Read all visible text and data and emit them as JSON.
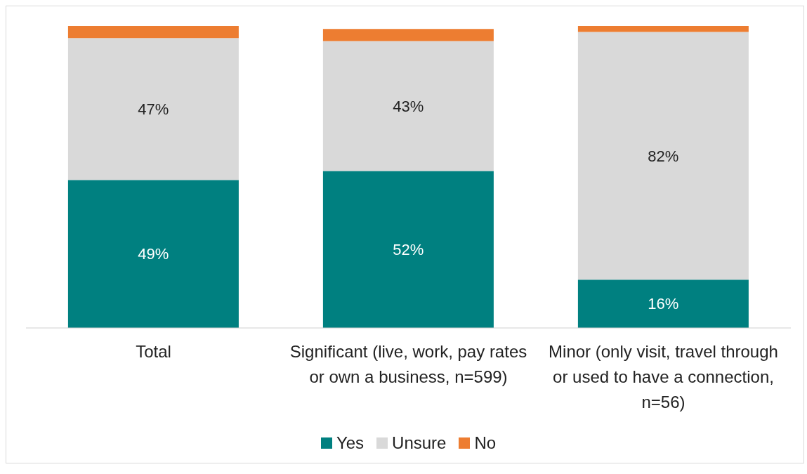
{
  "chart_data": {
    "type": "bar",
    "stacked": true,
    "categories": [
      "Total",
      "Significant (live, work, pay rates or own a business, n=599)",
      "Minor (only visit, travel through or used to have a connection, n=56)"
    ],
    "series": [
      {
        "name": "Yes",
        "color": "#008080",
        "values": [
          49,
          52,
          16
        ],
        "value_labels": [
          "49%",
          "52%",
          "16%"
        ]
      },
      {
        "name": "Unsure",
        "color": "#d9d9d9",
        "values": [
          47,
          43,
          82
        ],
        "value_labels": [
          "47%",
          "43%",
          "82%"
        ]
      },
      {
        "name": "No",
        "color": "#ed7d31",
        "values": [
          4,
          4,
          2
        ],
        "value_labels": [
          null,
          null,
          null
        ]
      }
    ],
    "ylim": [
      0,
      100
    ],
    "tick_labels": "x",
    "grid": false,
    "legend": "bottom"
  }
}
